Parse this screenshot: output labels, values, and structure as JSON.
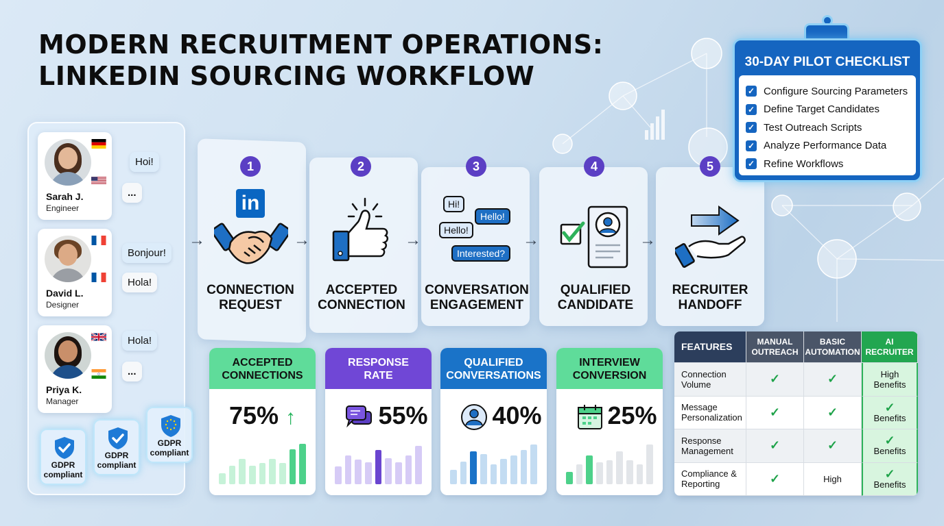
{
  "title": {
    "line1": "MODERN RECRUITMENT OPERATIONS:",
    "line2": "LINKEDIN SOURCING WORKFLOW"
  },
  "candidates": [
    {
      "name": "Sarah J.",
      "role": "Engineer",
      "flags": [
        "germany-flag",
        "usa-flag"
      ],
      "bubbles": [
        "Hoi!",
        "..."
      ]
    },
    {
      "name": "David L.",
      "role": "Designer",
      "flags": [
        "france-flag",
        "france-flag"
      ],
      "bubbles": [
        "Bonjour!",
        "Hola!"
      ]
    },
    {
      "name": "Priya K.",
      "role": "Manager",
      "flags": [
        "uk-flag",
        "india-flag"
      ],
      "bubbles": [
        "Hola!",
        "..."
      ]
    }
  ],
  "gdpr_badges": [
    {
      "line1": "GDPR",
      "line2": "compliant"
    },
    {
      "line1": "GDPR",
      "line2": "compliant"
    },
    {
      "line1": "GDPR",
      "line2": "compliant"
    }
  ],
  "steps": [
    {
      "num": "1",
      "line1": "CONNECTION",
      "line2": "REQUEST",
      "icon": "linkedin-handshake-icon",
      "badge": "in"
    },
    {
      "num": "2",
      "line1": "ACCEPTED",
      "line2": "CONNECTION",
      "icon": "thumbs-up-icon"
    },
    {
      "num": "3",
      "line1": "CONVERSATION",
      "line2": "ENGAGEMENT",
      "icon": "chat-bubbles-icon",
      "chat": [
        "Hi!",
        "Hello!",
        "Hello!",
        "Interested?"
      ]
    },
    {
      "num": "4",
      "line1": "QUALIFIED",
      "line2": "CANDIDATE",
      "icon": "profile-checklist-icon"
    },
    {
      "num": "5",
      "line1": "RECRUITER",
      "line2": "HANDOFF",
      "icon": "hand-arrow-icon"
    }
  ],
  "metrics": [
    {
      "line1": "ACCEPTED",
      "line2": "CONNECTIONS",
      "value": "75%",
      "icon": "arrow-up-icon",
      "color": "#5fdc9a",
      "textcolor": "#111"
    },
    {
      "line1": "RESPONSE",
      "line2": "RATE",
      "value": "55%",
      "icon": "chat-icon",
      "color": "#7047d6",
      "textcolor": "#fff"
    },
    {
      "line1": "QUALIFIED",
      "line2": "CONVERSATIONS",
      "value": "40%",
      "icon": "user-circle-icon",
      "color": "#1a73c8",
      "textcolor": "#fff"
    },
    {
      "line1": "INTERVIEW",
      "line2": "CONVERSION",
      "value": "25%",
      "icon": "calendar-icon",
      "color": "#5fdc9a",
      "textcolor": "#111"
    }
  ],
  "chart_data": [
    {
      "type": "bar",
      "title": "Accepted Connections",
      "values": [
        25,
        42,
        58,
        42,
        48,
        58,
        48,
        80,
        92
      ],
      "highlight": [
        7,
        8
      ]
    },
    {
      "type": "bar",
      "title": "Response Rate",
      "values": [
        40,
        65,
        56,
        50,
        78,
        60,
        50,
        66,
        88
      ],
      "highlight": [
        4
      ]
    },
    {
      "type": "bar",
      "title": "Qualified Conversations",
      "values": [
        33,
        52,
        75,
        68,
        45,
        58,
        66,
        78,
        90
      ],
      "highlight": [
        2
      ]
    },
    {
      "type": "bar",
      "title": "Interview Conversion",
      "values": [
        28,
        45,
        65,
        50,
        55,
        75,
        55,
        45,
        90
      ],
      "highlight": [
        0,
        2
      ]
    }
  ],
  "checklist": {
    "title": "30-DAY PILOT CHECKLIST",
    "items": [
      "Configure Sourcing Parameters",
      "Define Target Candidates",
      "Test Outreach Scripts",
      "Analyze Performance Data",
      "Refine Workflows"
    ]
  },
  "comparison_table": {
    "headers": [
      {
        "line1": "FEATURES",
        "line2": ""
      },
      {
        "line1": "MANUAL",
        "line2": "OUTREACH"
      },
      {
        "line1": "BASIC",
        "line2": "AUTOMATION"
      },
      {
        "line1": "AI",
        "line2": "RECRUITER"
      }
    ],
    "rows": [
      {
        "feature": [
          "Connection",
          "Volume"
        ],
        "manual": "check",
        "basic": "check",
        "ai": [
          "High",
          "Benefits"
        ],
        "ai_check": false
      },
      {
        "feature": [
          "Message",
          "Personalization"
        ],
        "manual": "check",
        "basic": "check",
        "ai": [
          "",
          "Benefits"
        ],
        "ai_check": true
      },
      {
        "feature": [
          "Response",
          "Management"
        ],
        "manual": "check",
        "basic": "check",
        "ai": [
          "",
          "Benefits"
        ],
        "ai_check": true
      },
      {
        "feature": [
          "Compliance &",
          "Reporting"
        ],
        "manual": "check",
        "basic": "High",
        "ai": [
          "",
          "Benefits"
        ],
        "ai_check": true
      }
    ]
  },
  "colors": {
    "step_badge": "#5b3fc4",
    "brand_blue": "#1565c0",
    "success_green": "#22a650"
  }
}
